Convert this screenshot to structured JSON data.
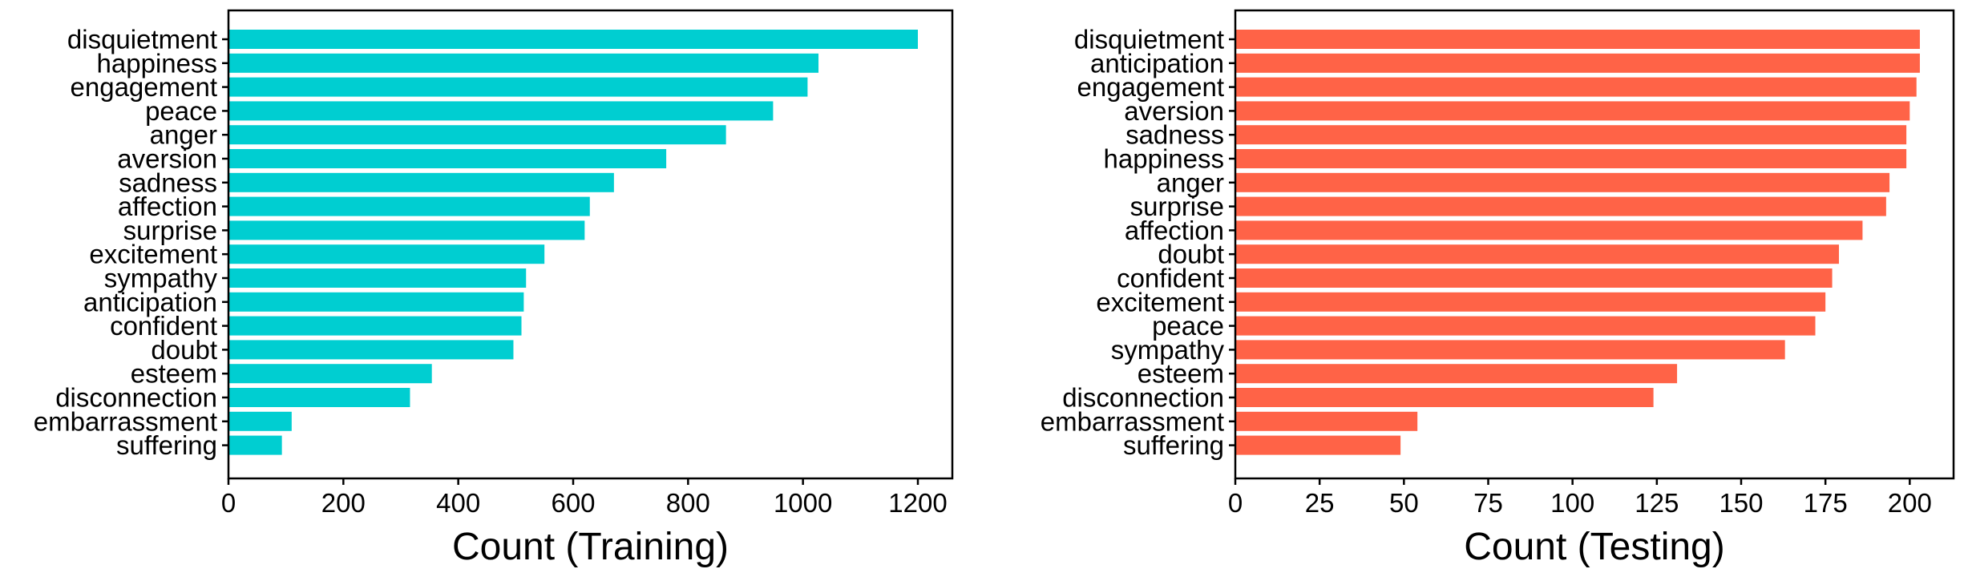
{
  "chart_data": [
    {
      "type": "bar",
      "orientation": "horizontal",
      "xlabel": "Count (Training)",
      "ylabel": "",
      "title": "",
      "color": "#00CED1",
      "xlim": [
        0,
        1260
      ],
      "xticks": [
        0,
        200,
        400,
        600,
        800,
        1000,
        1200
      ],
      "grid": false,
      "categories": [
        "disquietment",
        "happiness",
        "engagement",
        "peace",
        "anger",
        "aversion",
        "sadness",
        "affection",
        "surprise",
        "excitement",
        "sympathy",
        "anticipation",
        "confident",
        "doubt",
        "esteem",
        "disconnection",
        "embarrassment",
        "suffering"
      ],
      "values": [
        1200,
        1027,
        1008,
        948,
        866,
        762,
        671,
        629,
        620,
        550,
        518,
        514,
        510,
        496,
        354,
        316,
        110,
        93
      ]
    },
    {
      "type": "bar",
      "orientation": "horizontal",
      "xlabel": "Count (Testing)",
      "ylabel": "",
      "title": "",
      "color": "#FF6347",
      "xlim": [
        0,
        213
      ],
      "xticks": [
        0,
        25,
        50,
        75,
        100,
        125,
        150,
        175,
        200
      ],
      "grid": false,
      "categories": [
        "disquietment",
        "anticipation",
        "engagement",
        "aversion",
        "sadness",
        "happiness",
        "anger",
        "surprise",
        "affection",
        "doubt",
        "confident",
        "excitement",
        "peace",
        "sympathy",
        "esteem",
        "disconnection",
        "embarrassment",
        "suffering"
      ],
      "values": [
        203,
        203,
        202,
        200,
        199,
        199,
        194,
        193,
        186,
        179,
        177,
        175,
        172,
        163,
        131,
        124,
        54,
        49
      ]
    }
  ]
}
